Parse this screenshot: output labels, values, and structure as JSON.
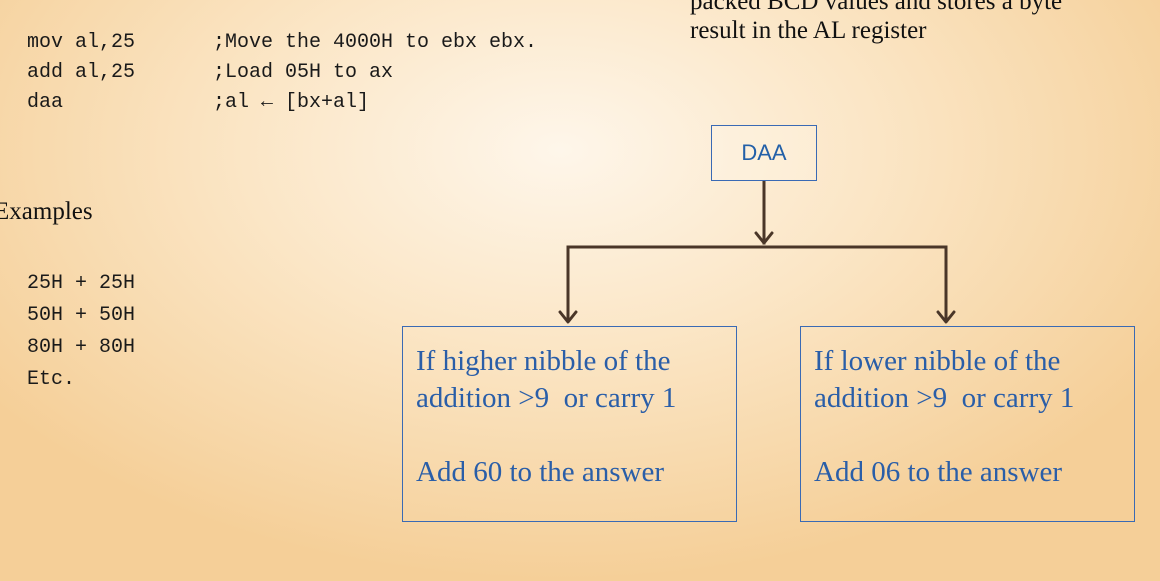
{
  "code": [
    {
      "instr": "mov al,25",
      "comment": ";Move the 4000H to ebx ebx."
    },
    {
      "instr": "add al,25",
      "comment": ";Load 05H to ax"
    },
    {
      "instr": "daa",
      "comment": ";al ← [bx+al]"
    }
  ],
  "description": {
    "line1": "packed BCD values and stores a byte",
    "line2": "result in the AL register"
  },
  "examples": {
    "heading": "Examples",
    "items": [
      "25H + 25H",
      "50H + 50H",
      "80H + 80H",
      "Etc."
    ]
  },
  "diagram": {
    "root": "DAA",
    "left": {
      "condition_line1": "If higher nibble of the",
      "condition_line2": "addition >9  or carry 1",
      "action": "Add 60 to the answer"
    },
    "right": {
      "condition_line1": "If lower nibble of the",
      "condition_line2": "addition >9  or carry 1",
      "action": "Add 06 to the answer"
    }
  },
  "colors": {
    "connector": "#4a3628",
    "box_border": "#3a6ab4",
    "box_text": "#2a5ea8"
  }
}
